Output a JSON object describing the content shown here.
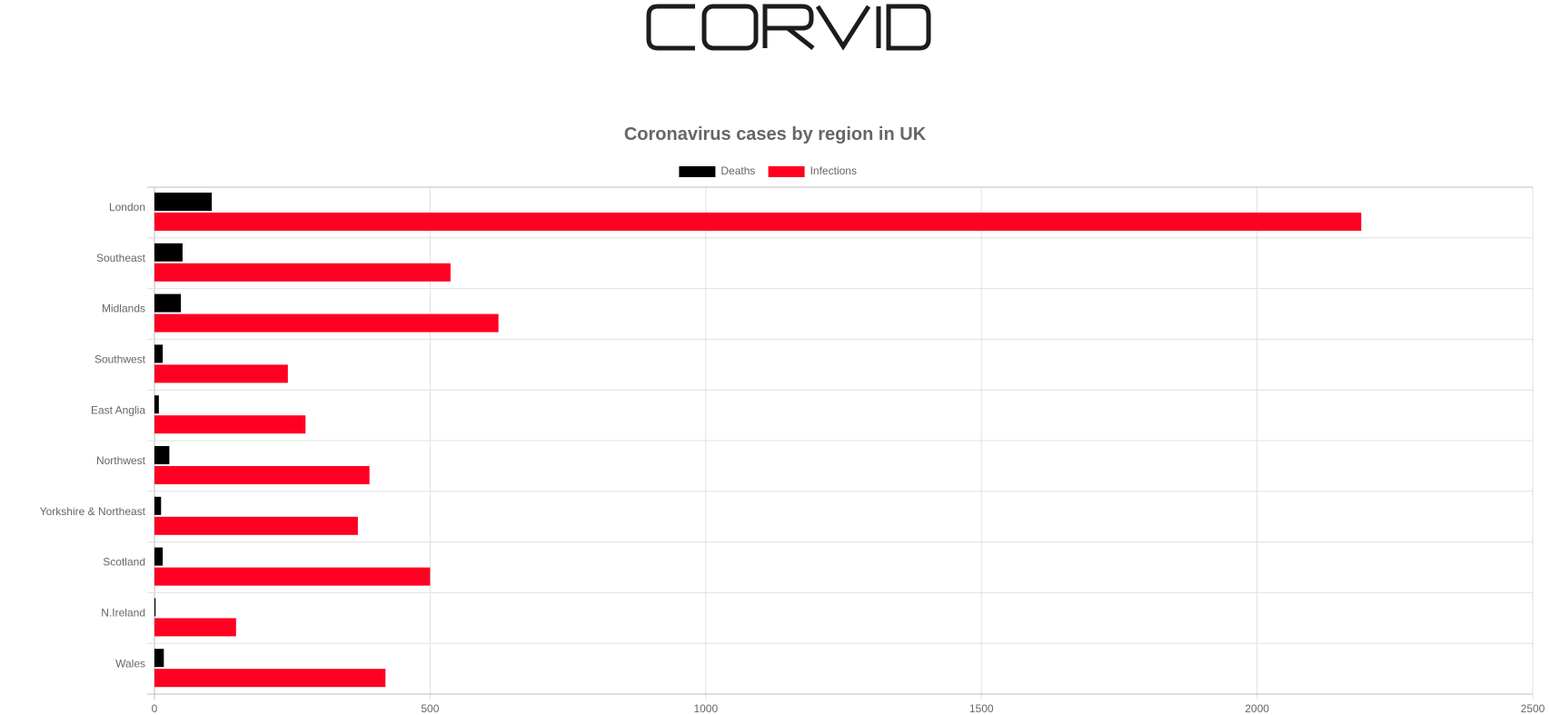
{
  "logo": {
    "text": "CORVID"
  },
  "chart_data": {
    "type": "bar",
    "orientation": "horizontal",
    "title": "Coronavirus cases by region in UK",
    "xlabel": "",
    "ylabel": "",
    "categories": [
      "London",
      "Southeast",
      "Midlands",
      "Southwest",
      "East Anglia",
      "Northwest",
      "Yorkshire & Northeast",
      "Scotland",
      "N.Ireland",
      "Wales"
    ],
    "series": [
      {
        "name": "Deaths",
        "color": "#000000",
        "values": [
          104,
          51,
          48,
          15,
          8,
          27,
          12,
          15,
          2,
          17
        ]
      },
      {
        "name": "Infections",
        "color": "#ff0022",
        "values": [
          2189,
          537,
          624,
          242,
          274,
          390,
          369,
          500,
          148,
          419
        ]
      }
    ],
    "xlim": [
      0,
      2500
    ],
    "xticks": [
      "0",
      "500",
      "1000",
      "1500",
      "2000",
      "2500"
    ],
    "grid": true,
    "legend_position": "top"
  }
}
